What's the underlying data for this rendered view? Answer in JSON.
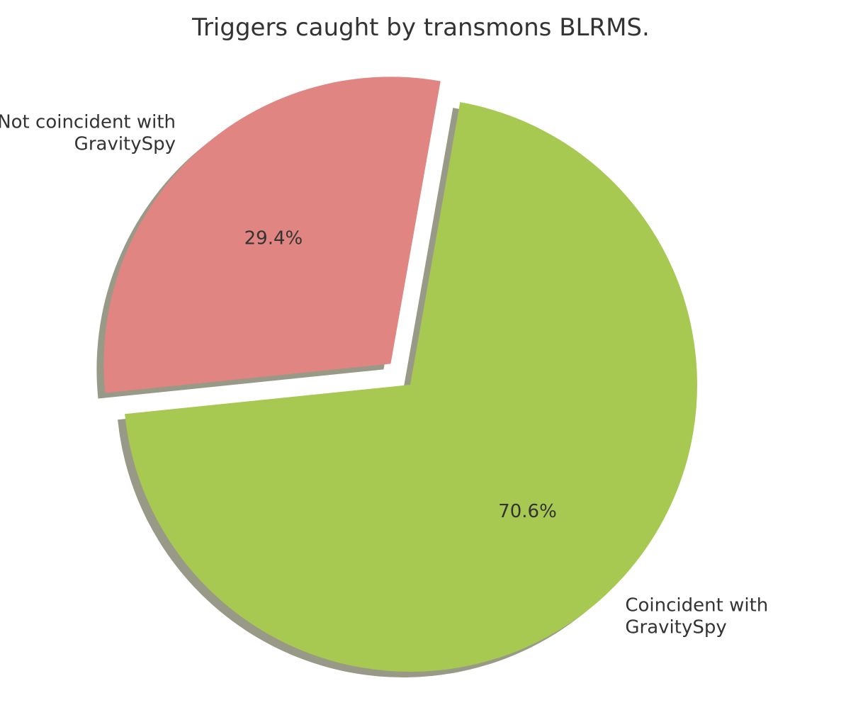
{
  "chart_data": {
    "type": "pie",
    "title": "Triggers caught by transmons BLRMS.",
    "slices": [
      {
        "label_lines": [
          "Not coincident with",
          "GravitySpy"
        ],
        "value": 29.4,
        "pct_label": "29.4%",
        "color": "#e08582",
        "exploded": true
      },
      {
        "label_lines": [
          "Coincident with",
          "GravitySpy"
        ],
        "value": 70.6,
        "pct_label": "70.6%",
        "color": "#a7c951",
        "exploded": false
      }
    ],
    "start_angle_deg": 80,
    "shadow": true,
    "shadow_color": "#999988",
    "legend": "none"
  }
}
